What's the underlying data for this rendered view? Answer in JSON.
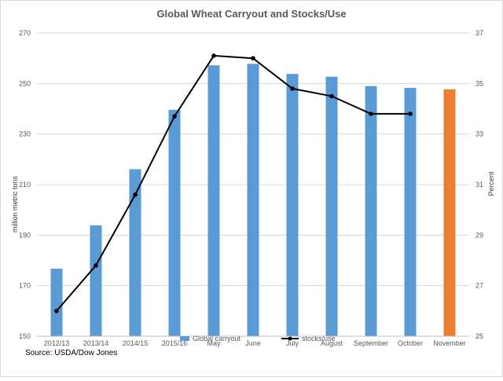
{
  "chart_data": {
    "type": "bar",
    "title": "Global Wheat Carryout and Stocks/Use",
    "categories": [
      "2012/13",
      "2013/14",
      "2014/15",
      "2015/16",
      "May",
      "June",
      "July",
      "August",
      "September",
      "October",
      "November"
    ],
    "series": [
      {
        "name": "Global carryout",
        "type": "bar",
        "axis": "left",
        "values": [
          176.7,
          193.9,
          216.1,
          239.6,
          257.2,
          257.8,
          253.8,
          252.7,
          249.0,
          248.3,
          247.7
        ],
        "colors": [
          "#5b9bd5",
          "#5b9bd5",
          "#5b9bd5",
          "#5b9bd5",
          "#5b9bd5",
          "#5b9bd5",
          "#5b9bd5",
          "#5b9bd5",
          "#5b9bd5",
          "#5b9bd5",
          "#ed7d31"
        ]
      },
      {
        "name": "stocks/use",
        "type": "line",
        "axis": "right",
        "values": [
          26.0,
          27.8,
          30.6,
          33.7,
          36.1,
          36.0,
          34.8,
          34.5,
          33.8,
          33.8,
          null
        ],
        "color": "#000000"
      }
    ],
    "ylabel": "million metric tons",
    "y2label": "Percent",
    "ylim": [
      150,
      270
    ],
    "y2lim": [
      25,
      37
    ],
    "yticks": [
      "150",
      "170",
      "190",
      "210",
      "230",
      "250",
      "270"
    ],
    "y2ticks": [
      "25",
      "27",
      "29",
      "31",
      "33",
      "35",
      "37"
    ],
    "grid": true,
    "legend_position": "bottom"
  },
  "source": "Source: USDA/Dow Jones"
}
